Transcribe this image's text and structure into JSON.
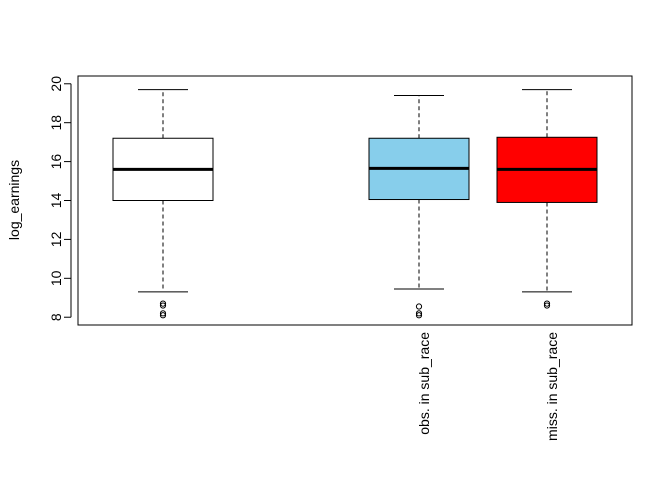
{
  "chart_data": {
    "type": "boxplot",
    "ylabel": "log_earnings",
    "ylim": [
      7.6,
      20.4
    ],
    "yticks": [
      8,
      10,
      12,
      14,
      16,
      18,
      20
    ],
    "grid": false,
    "legend": "none",
    "boxes": [
      {
        "label": "",
        "color": "#ffffff",
        "min": 9.3,
        "q1": 14.0,
        "median": 15.6,
        "q3": 17.2,
        "max": 19.7,
        "outliers": [
          8.1,
          8.2,
          8.6,
          8.7
        ]
      },
      {
        "label": "obs. in sub_race",
        "color": "#87ceeb",
        "min": 9.45,
        "q1": 14.05,
        "median": 15.65,
        "q3": 17.2,
        "max": 19.4,
        "outliers": [
          8.1,
          8.2,
          8.55
        ]
      },
      {
        "label": "miss. in sub_race",
        "color": "#ff0000",
        "min": 9.3,
        "q1": 13.9,
        "median": 15.6,
        "q3": 17.25,
        "max": 19.7,
        "outliers": [
          8.6,
          8.7
        ]
      }
    ]
  }
}
